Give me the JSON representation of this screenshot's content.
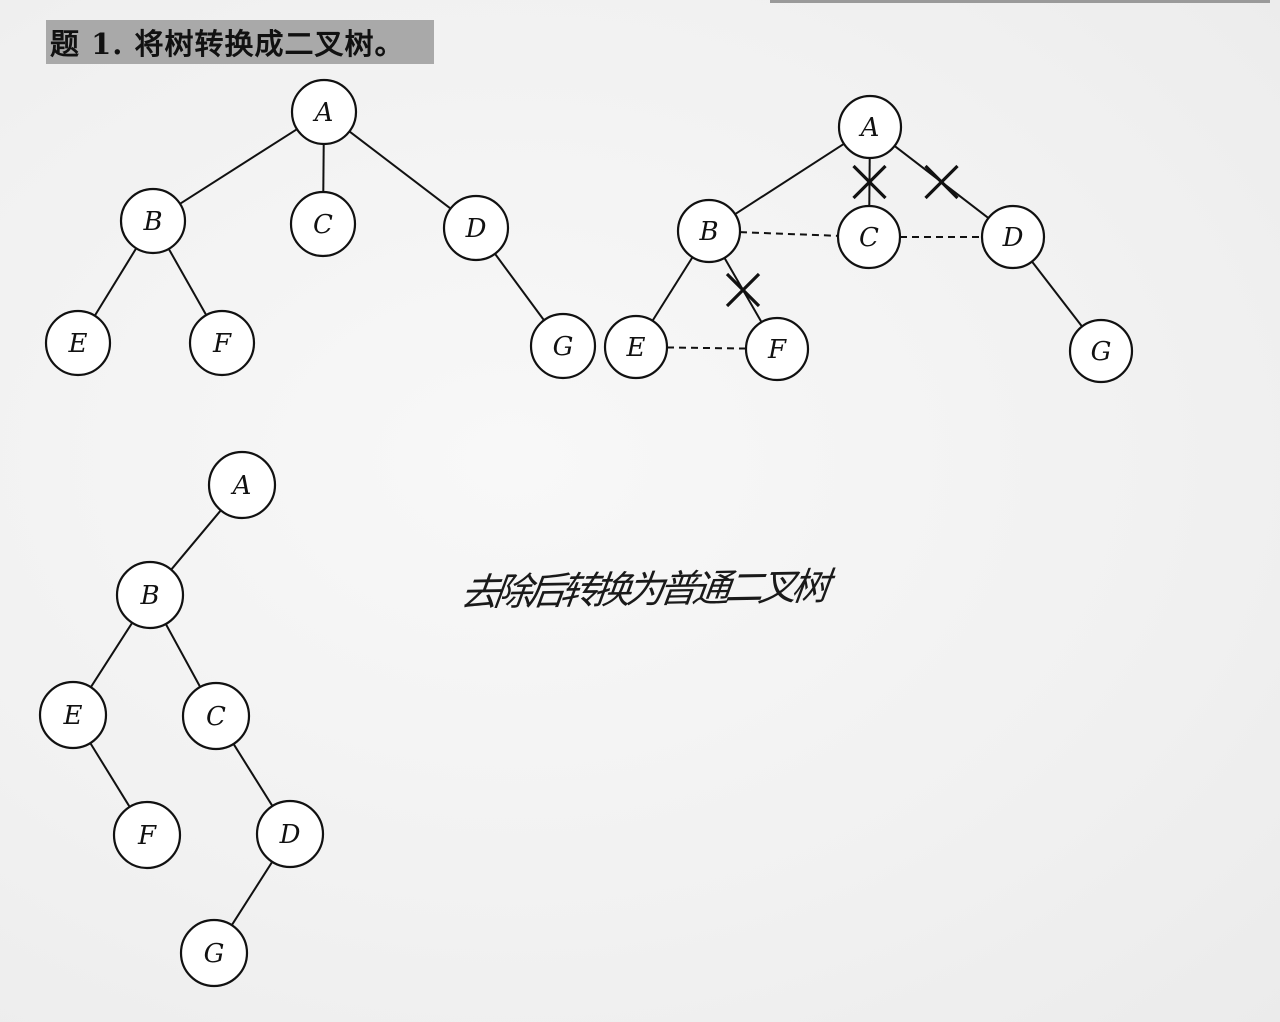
{
  "title": "题 1. 将树转换成二叉树。",
  "handwritten_note": "去除后转换为普通二叉树",
  "colors": {
    "ink": "#111111",
    "node_fill": "#ffffff",
    "title_band": "#a9a9a9",
    "paper": "#f3f3f3"
  },
  "figures": [
    {
      "id": "original-tree",
      "nodes": [
        "A",
        "B",
        "C",
        "D",
        "E",
        "F",
        "G"
      ],
      "edges": [
        [
          "A",
          "B"
        ],
        [
          "A",
          "C"
        ],
        [
          "A",
          "D"
        ],
        [
          "B",
          "E"
        ],
        [
          "B",
          "F"
        ],
        [
          "D",
          "G"
        ]
      ]
    },
    {
      "id": "conversion-step",
      "nodes": [
        "A",
        "B",
        "C",
        "D",
        "E",
        "F",
        "G"
      ],
      "kept_edges": [
        [
          "A",
          "B"
        ],
        [
          "B",
          "E"
        ],
        [
          "D",
          "G"
        ]
      ],
      "removed_edges": [
        [
          "A",
          "C"
        ],
        [
          "A",
          "D"
        ],
        [
          "B",
          "F"
        ]
      ],
      "sibling_links": [
        [
          "B",
          "C"
        ],
        [
          "C",
          "D"
        ],
        [
          "E",
          "F"
        ]
      ]
    },
    {
      "id": "binary-tree",
      "nodes": [
        "A",
        "B",
        "C",
        "D",
        "E",
        "F",
        "G"
      ],
      "edges": [
        [
          "A",
          "B"
        ],
        [
          "B",
          "E"
        ],
        [
          "B",
          "C"
        ],
        [
          "E",
          "F"
        ],
        [
          "C",
          "D"
        ],
        [
          "D",
          "G"
        ]
      ]
    }
  ]
}
